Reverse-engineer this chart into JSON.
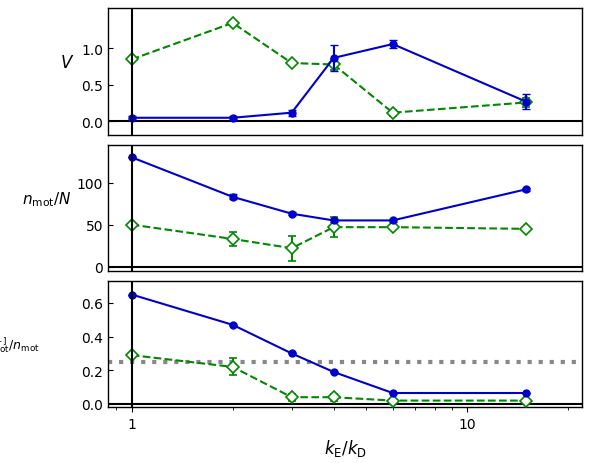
{
  "x_blue_p1": [
    1,
    2,
    3,
    4,
    6,
    15
  ],
  "y_blue_p1": [
    0.05,
    0.05,
    0.12,
    0.87,
    1.06,
    0.27
  ],
  "yerr_blue_p1": [
    0.03,
    0.03,
    0.04,
    0.18,
    0.05,
    0.1
  ],
  "x_green_p1": [
    1,
    2,
    3,
    4,
    6,
    15
  ],
  "y_green_p1": [
    0.85,
    1.35,
    0.8,
    0.78,
    0.12,
    0.26
  ],
  "yerr_green_p1": [
    0.0,
    0.0,
    0.0,
    0.07,
    0.04,
    0.06
  ],
  "x_blue_p2": [
    1,
    2,
    3,
    4,
    6,
    15
  ],
  "y_blue_p2": [
    130,
    83,
    63,
    55,
    55,
    92
  ],
  "yerr_blue_p2": [
    0,
    3,
    2,
    2,
    2,
    2
  ],
  "x_green_p2": [
    1,
    2,
    3,
    4,
    6,
    15
  ],
  "y_green_p2": [
    50,
    33,
    22,
    47,
    47,
    45
  ],
  "yerr_green_p2": [
    0,
    8,
    15,
    12,
    2,
    0
  ],
  "x_blue_p3": [
    1,
    2,
    3,
    4,
    6,
    15
  ],
  "y_blue_p3": [
    0.65,
    0.47,
    0.3,
    0.19,
    0.065,
    0.065
  ],
  "yerr_blue_p3": [
    0,
    0,
    0,
    0,
    0,
    0
  ],
  "x_green_p3": [
    1,
    2,
    3,
    4,
    6,
    15
  ],
  "y_green_p3": [
    0.29,
    0.22,
    0.04,
    0.04,
    0.02,
    0.02
  ],
  "yerr_green_p3": [
    0,
    0.05,
    0.02,
    0.02,
    0,
    0
  ],
  "gray_line_y": 0.25,
  "blue_color": "#0000cc",
  "green_color": "#008800",
  "gray_color": "#888888",
  "xlabel": "$k_\\mathrm{E}/k_\\mathrm{D}$",
  "ylabel_p1": "$V$",
  "ylabel_p2": "$n_\\mathrm{mot}/N$",
  "ylabel_p3": "$n_\\mathrm{mot}^{[+]}/n_\\mathrm{mot}$",
  "xlim": [
    0.85,
    22
  ],
  "ylim_p1": [
    -0.18,
    1.55
  ],
  "ylim_p2": [
    -5,
    145
  ],
  "ylim_p3": [
    -0.02,
    0.73
  ],
  "yticks_p1": [
    0.0,
    0.5,
    1.0
  ],
  "yticks_p2": [
    0,
    50,
    100
  ],
  "yticks_p3": [
    0.0,
    0.2,
    0.4,
    0.6
  ],
  "background_color": "#ffffff"
}
